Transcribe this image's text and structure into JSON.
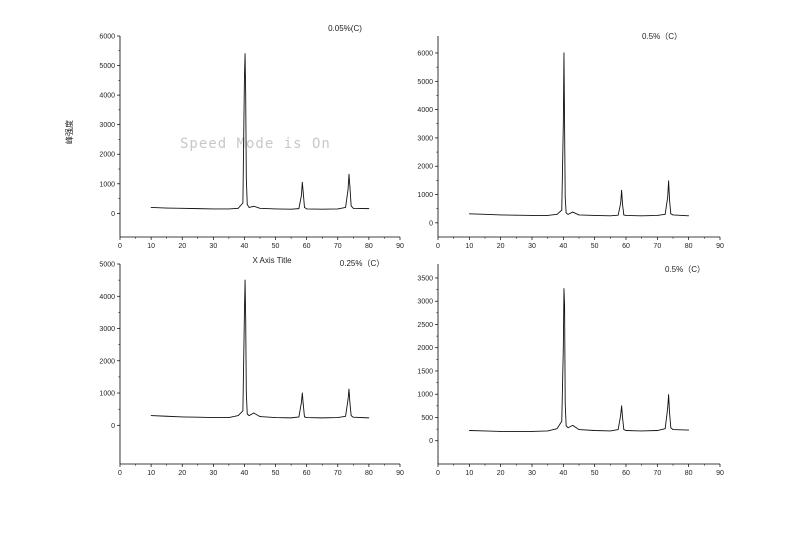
{
  "figure": {
    "ylabel": "峰强度",
    "watermark": "Speed Mode is On"
  },
  "chart_data": [
    {
      "type": "line",
      "label": "0.05%(C)",
      "xlabel": "X Axis Title",
      "ylabel": "峰强度",
      "xlim": [
        0,
        90
      ],
      "ylim": [
        -800,
        6000
      ],
      "xticks": [
        0,
        10,
        20,
        30,
        40,
        50,
        60,
        70,
        80,
        90
      ],
      "yticks": [
        0,
        1000,
        2000,
        3000,
        4000,
        5000,
        6000
      ],
      "x": [
        10,
        15,
        20,
        25,
        30,
        35,
        38,
        39.5,
        40.0,
        40.2,
        40.4,
        40.6,
        40.9,
        41.5,
        43,
        45,
        50,
        55,
        57.5,
        58.3,
        58.6,
        58.9,
        59.3,
        60,
        65,
        70,
        72.5,
        73.3,
        73.6,
        73.9,
        74.3,
        75,
        80
      ],
      "y": [
        200,
        180,
        170,
        160,
        150,
        150,
        170,
        350,
        4600,
        5400,
        4000,
        1200,
        300,
        200,
        240,
        170,
        150,
        140,
        160,
        600,
        1050,
        700,
        200,
        150,
        140,
        150,
        200,
        800,
        1320,
        900,
        250,
        170,
        160
      ]
    },
    {
      "type": "line",
      "label": "0.5%（C）",
      "xlabel": "",
      "ylabel": "",
      "xlim": [
        0,
        90
      ],
      "ylim": [
        -500,
        6600
      ],
      "xticks": [
        0,
        10,
        20,
        30,
        40,
        50,
        60,
        70,
        80,
        90
      ],
      "yticks": [
        0,
        1000,
        2000,
        3000,
        4000,
        5000,
        6000
      ],
      "x": [
        10,
        15,
        20,
        25,
        30,
        35,
        38,
        39.5,
        40.0,
        40.2,
        40.4,
        40.6,
        40.9,
        41.5,
        43,
        45,
        50,
        55,
        57.5,
        58.3,
        58.6,
        58.9,
        59.3,
        60,
        65,
        70,
        72.5,
        73.3,
        73.6,
        73.9,
        74.3,
        75,
        80
      ],
      "y": [
        320,
        300,
        280,
        270,
        260,
        260,
        300,
        450,
        3500,
        6000,
        3400,
        900,
        350,
        300,
        380,
        280,
        260,
        250,
        270,
        700,
        1150,
        650,
        280,
        260,
        250,
        260,
        300,
        900,
        1480,
        800,
        320,
        280,
        250
      ]
    },
    {
      "type": "line",
      "label": "0.25%（C）",
      "xlabel": "",
      "ylabel": "",
      "xlim": [
        0,
        90
      ],
      "ylim": [
        -1200,
        5000
      ],
      "xticks": [
        0,
        10,
        20,
        30,
        40,
        50,
        60,
        70,
        80,
        90
      ],
      "yticks": [
        0,
        1000,
        2000,
        3000,
        4000,
        5000
      ],
      "x": [
        10,
        15,
        20,
        25,
        30,
        35,
        38,
        39.5,
        40.0,
        40.2,
        40.4,
        40.6,
        40.9,
        41.5,
        43,
        45,
        50,
        55,
        57.5,
        58.3,
        58.6,
        58.9,
        59.3,
        60,
        65,
        70,
        72.5,
        73.3,
        73.6,
        73.9,
        74.3,
        75,
        80
      ],
      "y": [
        300,
        280,
        260,
        250,
        240,
        240,
        300,
        450,
        3500,
        4500,
        3300,
        1000,
        350,
        300,
        380,
        270,
        240,
        230,
        260,
        700,
        1000,
        650,
        260,
        240,
        230,
        240,
        280,
        800,
        1120,
        700,
        300,
        250,
        230
      ]
    },
    {
      "type": "line",
      "label": "0.5%（C）",
      "xlabel": "",
      "ylabel": "",
      "xlim": [
        0,
        90
      ],
      "ylim": [
        -500,
        3800
      ],
      "xticks": [
        0,
        10,
        20,
        30,
        40,
        50,
        60,
        70,
        80,
        90
      ],
      "yticks": [
        0,
        500,
        1000,
        1500,
        2000,
        2500,
        3000,
        3500
      ],
      "x": [
        10,
        15,
        20,
        25,
        30,
        35,
        38,
        39.5,
        40.0,
        40.2,
        40.4,
        40.6,
        40.9,
        41.5,
        43,
        45,
        50,
        55,
        57.5,
        58.3,
        58.6,
        58.9,
        59.3,
        60,
        65,
        70,
        72.5,
        73.3,
        73.6,
        73.9,
        74.3,
        75,
        80
      ],
      "y": [
        220,
        210,
        200,
        200,
        200,
        210,
        260,
        420,
        2000,
        3270,
        2900,
        800,
        320,
        280,
        330,
        240,
        220,
        210,
        240,
        550,
        750,
        500,
        240,
        220,
        210,
        220,
        260,
        700,
        990,
        600,
        280,
        240,
        230
      ]
    }
  ]
}
